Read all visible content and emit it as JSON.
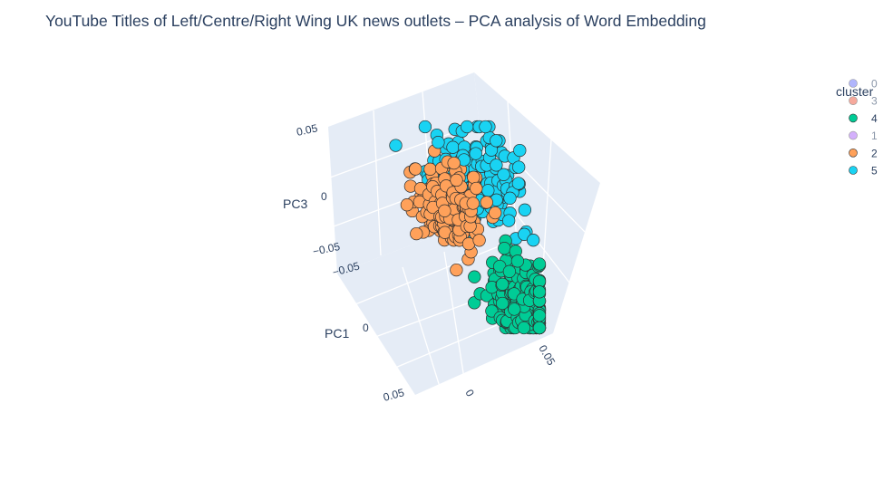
{
  "chart_data": {
    "type": "scatter",
    "title": "YouTube Titles of Left/Centre/Right Wing UK news outlets – PCA analysis of Word Embedding",
    "axes": {
      "pc1_label": "PC1",
      "pc3_label": "PC3",
      "pc2_label": "",
      "pc1_ticks": [
        "−0.05",
        "0",
        "0.05"
      ],
      "pc2_ticks": [
        "0",
        "0.05"
      ],
      "pc3_ticks": [
        "0.05",
        "0",
        "−0.05"
      ]
    },
    "legend": {
      "title": "cluster",
      "position": "top-right",
      "items": [
        {
          "label": "0",
          "color": "#636efa",
          "visible": false
        },
        {
          "label": "3",
          "color": "#ef553b",
          "visible": false
        },
        {
          "label": "4",
          "color": "#00cc96",
          "visible": true
        },
        {
          "label": "1",
          "color": "#ab63fa",
          "visible": false
        },
        {
          "label": "2",
          "color": "#ffa15a",
          "visible": true
        },
        {
          "label": "5",
          "color": "#19d3f3",
          "visible": true
        }
      ]
    },
    "series": [
      {
        "name": "2",
        "color": "#ffa15a",
        "count": 170,
        "approx_center": {
          "pc1": -0.055,
          "pc2": -0.01,
          "pc3": -0.01
        },
        "approx_spread": {
          "pc1": 0.015,
          "pc2": 0.015,
          "pc3": 0.02
        }
      },
      {
        "name": "5",
        "color": "#19d3f3",
        "count": 210,
        "approx_center": {
          "pc1": -0.04,
          "pc2": 0.01,
          "pc3": 0.03
        },
        "approx_spread": {
          "pc1": 0.02,
          "pc2": 0.02,
          "pc3": 0.02
        }
      },
      {
        "name": "4",
        "color": "#00cc96",
        "count": 200,
        "approx_center": {
          "pc1": -0.025,
          "pc2": 0.035,
          "pc3": -0.025
        },
        "approx_spread": {
          "pc1": 0.02,
          "pc2": 0.015,
          "pc3": 0.02
        }
      }
    ],
    "colors": {
      "scene_bg": "#e5ecf6",
      "grid": "#ffffff",
      "marker_outline": "#303030",
      "text": "#2a3f5f",
      "legend_hidden_text": "#8a96a8"
    }
  }
}
